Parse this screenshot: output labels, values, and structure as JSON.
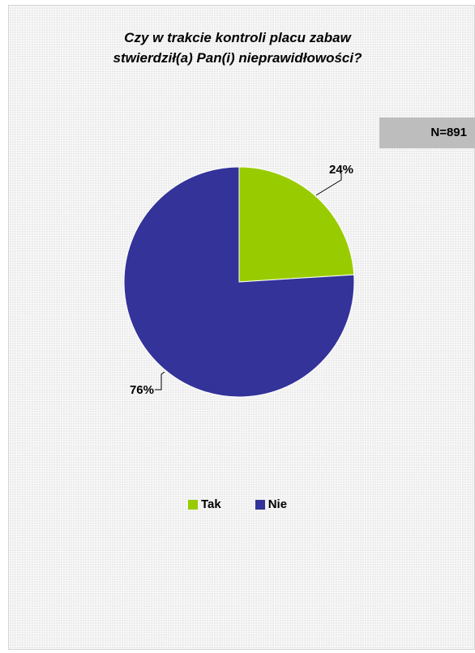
{
  "chart_data": {
    "type": "pie",
    "title_lines": [
      "Czy w trakcie kontroli placu zabaw",
      "stwierdził(a) Pan(i) nieprawidłowości?"
    ],
    "annotation": "N=891",
    "slices": [
      {
        "label": "Tak",
        "value": 24,
        "data_label": "24%",
        "color": "#99cc00"
      },
      {
        "label": "Nie",
        "value": 76,
        "data_label": "76%",
        "color": "#333399"
      }
    ],
    "legend_position": "bottom"
  }
}
